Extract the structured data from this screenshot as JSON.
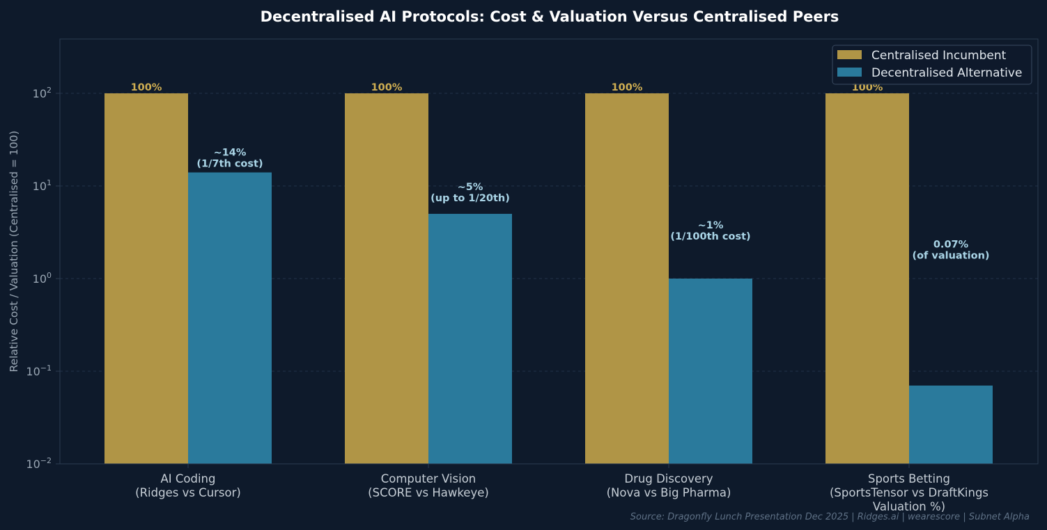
{
  "colors": {
    "background": "#0e1a2b",
    "plot_border": "#2c3c52",
    "grid": "#22324a",
    "title": "#ffffff",
    "axis_text": "#9aa7b4",
    "category_text": "#c6ced6",
    "source_text": "#5f7186",
    "centralised": "#b09546",
    "decentralised": "#2a7a9c",
    "label_centralised": "#cfae52",
    "label_decentralised": "#a9d4e6",
    "legend_bg": "#0e1a2b",
    "legend_border": "#3a4a60",
    "legend_text": "#e2e8ee"
  },
  "chart_data": {
    "type": "bar",
    "title": "Decentralised AI Protocols: Cost & Valuation Versus Centralised Peers",
    "ylabel": "Relative Cost / Valuation (Centralised = 100)",
    "yscale": "log",
    "ylim": [
      0.01,
      400
    ],
    "grid": true,
    "legend_position": "top-right",
    "y_ticks": [
      {
        "value": 0.01,
        "base": "10",
        "exp": "−2"
      },
      {
        "value": 0.1,
        "base": "10",
        "exp": "−1"
      },
      {
        "value": 1,
        "base": "10",
        "exp": "0"
      },
      {
        "value": 10,
        "base": "10",
        "exp": "1"
      },
      {
        "value": 100,
        "base": "10",
        "exp": "2"
      }
    ],
    "categories": [
      [
        "AI Coding",
        "(Ridges vs Cursor)"
      ],
      [
        "Computer Vision",
        "(SCORE vs Hawkeye)"
      ],
      [
        "Drug Discovery",
        "(Nova vs Big Pharma)"
      ],
      [
        "Sports Betting",
        "(SportsTensor vs DraftKings",
        "Valuation %)"
      ]
    ],
    "series": [
      {
        "name": "Centralised Incumbent",
        "values": [
          100,
          100,
          100,
          100
        ],
        "labels": [
          [
            "100%"
          ],
          [
            "100%"
          ],
          [
            "100%"
          ],
          [
            "100%"
          ]
        ]
      },
      {
        "name": "Decentralised Alternative",
        "values": [
          14,
          5,
          1,
          0.07
        ],
        "labels": [
          [
            "~14%",
            "(1/7th cost)"
          ],
          [
            "~5%",
            "(up to 1/20th)"
          ],
          [
            "~1%",
            "(1/100th cost)"
          ],
          [
            "0.07%",
            "(of valuation)"
          ]
        ]
      }
    ],
    "source": "Source: Dragonfly Lunch Presentation Dec 2025 | Ridges.ai | wearescore | Subnet Alpha"
  }
}
